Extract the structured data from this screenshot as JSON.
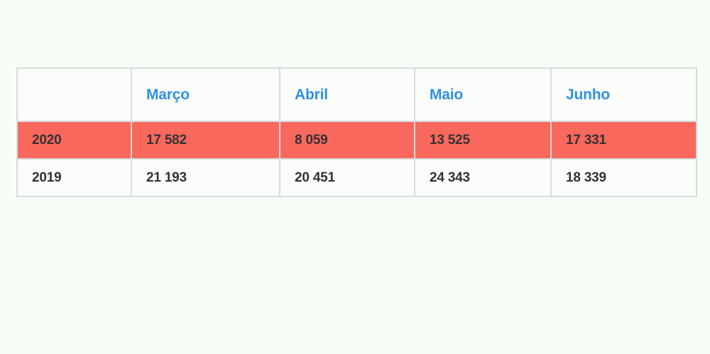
{
  "page": {
    "background_color": "#f6fdf6"
  },
  "table": {
    "columns": [
      "",
      "Março",
      "Abril",
      "Maio",
      "Junho"
    ],
    "rows": [
      {
        "label": "2020",
        "values": [
          "17 582",
          "8 059",
          "13 525",
          "17 331"
        ],
        "highlighted": true
      },
      {
        "label": "2019",
        "values": [
          "21 193",
          "20 451",
          "24 343",
          "18 339"
        ],
        "highlighted": false
      }
    ],
    "colors": {
      "header_text": "#3191e1",
      "highlight_row_background": "#f9685d",
      "body_text": "#333333",
      "border": "#d9dbd9",
      "cell_background": "#fafdfa"
    }
  },
  "chart_data": {
    "type": "table",
    "title": "",
    "categories": [
      "Março",
      "Abril",
      "Maio",
      "Junho"
    ],
    "series": [
      {
        "name": "2020",
        "values": [
          17582,
          8059,
          13525,
          17331
        ]
      },
      {
        "name": "2019",
        "values": [
          21193,
          20451,
          24343,
          18339
        ]
      }
    ],
    "layout_hints": {
      "highlighted_series": "2020",
      "row_label_column_first": true
    }
  }
}
